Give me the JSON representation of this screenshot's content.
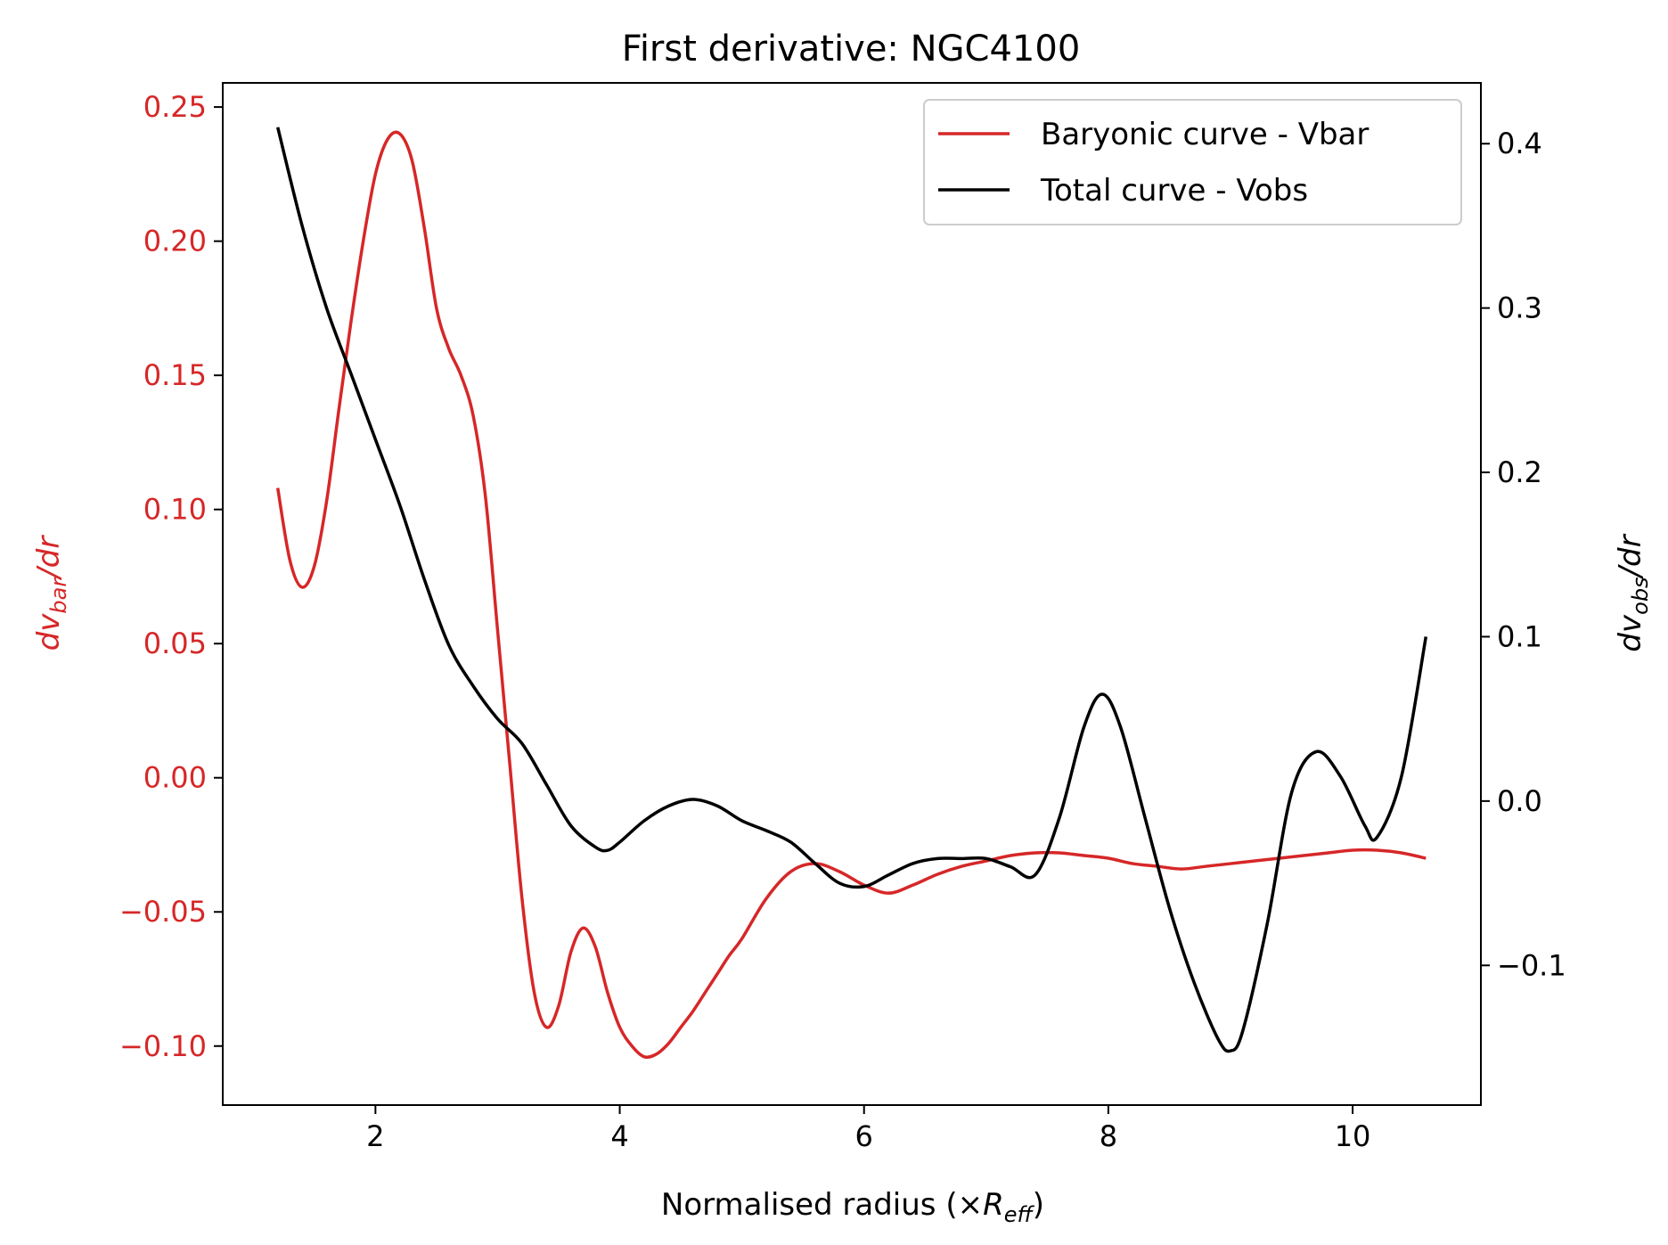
{
  "chart_data": {
    "type": "line",
    "title": "First derivative: NGC4100",
    "xlabel": "Normalised radius (×R_eff)",
    "xlabel_main": "Normalised radius (×",
    "xlabel_sym": "R",
    "xlabel_sub": "eff",
    "xlabel_end": ")",
    "ylabel_left": {
      "prefix": "dv",
      "sub": "bar",
      "suffix": "/dr"
    },
    "ylabel_right": {
      "prefix": "dv",
      "sub": "obs",
      "suffix": "/dr"
    },
    "xlim": [
      0.75,
      11.05
    ],
    "ylim_left": [
      -0.122,
      0.259
    ],
    "ylim_right": [
      -0.185,
      0.437
    ],
    "x_ticks": [
      2,
      4,
      6,
      8,
      10
    ],
    "x_tick_labels": [
      "2",
      "4",
      "6",
      "8",
      "10"
    ],
    "y_left_ticks": [
      -0.1,
      -0.05,
      0.0,
      0.05,
      0.1,
      0.15,
      0.2,
      0.25
    ],
    "y_left_tick_labels": [
      "−0.10",
      "−0.05",
      "0.00",
      "0.05",
      "0.10",
      "0.15",
      "0.20",
      "0.25"
    ],
    "y_right_ticks": [
      -0.1,
      0.0,
      0.1,
      0.2,
      0.3,
      0.4
    ],
    "y_right_tick_labels": [
      "−0.1",
      "0.0",
      "0.1",
      "0.2",
      "0.3",
      "0.4"
    ],
    "legend_position": "top-right",
    "grid": false,
    "colors": {
      "bar": "#d62728",
      "obs": "#000000",
      "frame": "#000000"
    },
    "series": [
      {
        "name": "Baryonic curve - Vbar",
        "axis": "left",
        "color": "#d62728",
        "x": [
          1.2,
          1.3,
          1.4,
          1.5,
          1.6,
          1.7,
          1.8,
          1.9,
          2.0,
          2.1,
          2.2,
          2.3,
          2.4,
          2.5,
          2.6,
          2.7,
          2.8,
          2.9,
          3.0,
          3.1,
          3.2,
          3.3,
          3.4,
          3.5,
          3.6,
          3.7,
          3.8,
          3.9,
          4.0,
          4.1,
          4.2,
          4.3,
          4.4,
          4.5,
          4.6,
          4.7,
          4.8,
          4.9,
          5.0,
          5.2,
          5.4,
          5.6,
          5.8,
          6.0,
          6.2,
          6.4,
          6.6,
          6.8,
          7.0,
          7.2,
          7.4,
          7.6,
          7.8,
          8.0,
          8.2,
          8.4,
          8.6,
          8.8,
          9.0,
          9.2,
          9.4,
          9.6,
          9.8,
          10.0,
          10.2,
          10.4,
          10.6
        ],
        "values": [
          0.108,
          0.081,
          0.071,
          0.079,
          0.103,
          0.137,
          0.17,
          0.2,
          0.225,
          0.238,
          0.24,
          0.23,
          0.205,
          0.175,
          0.16,
          0.15,
          0.135,
          0.105,
          0.055,
          0.005,
          -0.045,
          -0.08,
          -0.093,
          -0.085,
          -0.065,
          -0.056,
          -0.063,
          -0.08,
          -0.093,
          -0.1,
          -0.104,
          -0.103,
          -0.099,
          -0.093,
          -0.087,
          -0.08,
          -0.073,
          -0.066,
          -0.06,
          -0.045,
          -0.035,
          -0.032,
          -0.035,
          -0.04,
          -0.043,
          -0.04,
          -0.036,
          -0.033,
          -0.031,
          -0.029,
          -0.028,
          -0.028,
          -0.029,
          -0.03,
          -0.032,
          -0.033,
          -0.034,
          -0.033,
          -0.032,
          -0.031,
          -0.03,
          -0.029,
          -0.028,
          -0.027,
          -0.027,
          -0.028,
          -0.03
        ]
      },
      {
        "name": "Total curve - Vobs",
        "axis": "right",
        "color": "#000000",
        "x": [
          1.2,
          1.4,
          1.6,
          1.8,
          2.0,
          2.2,
          2.4,
          2.6,
          2.8,
          3.0,
          3.2,
          3.4,
          3.6,
          3.8,
          3.9,
          4.0,
          4.2,
          4.4,
          4.6,
          4.8,
          5.0,
          5.2,
          5.4,
          5.6,
          5.8,
          6.0,
          6.2,
          6.4,
          6.6,
          6.8,
          7.0,
          7.2,
          7.4,
          7.6,
          7.8,
          7.95,
          8.1,
          8.3,
          8.5,
          8.7,
          8.9,
          9.0,
          9.1,
          9.3,
          9.5,
          9.7,
          9.9,
          10.1,
          10.2,
          10.4,
          10.6
        ],
        "values": [
          0.41,
          0.35,
          0.3,
          0.26,
          0.22,
          0.18,
          0.135,
          0.095,
          0.07,
          0.05,
          0.035,
          0.01,
          -0.015,
          -0.028,
          -0.03,
          -0.025,
          -0.012,
          -0.003,
          0.001,
          -0.003,
          -0.012,
          -0.018,
          -0.025,
          -0.038,
          -0.05,
          -0.052,
          -0.045,
          -0.038,
          -0.035,
          -0.035,
          -0.035,
          -0.04,
          -0.045,
          -0.01,
          0.045,
          0.065,
          0.045,
          -0.01,
          -0.065,
          -0.11,
          -0.145,
          -0.152,
          -0.14,
          -0.075,
          0.005,
          0.03,
          0.015,
          -0.015,
          -0.022,
          0.015,
          0.1
        ]
      }
    ]
  }
}
